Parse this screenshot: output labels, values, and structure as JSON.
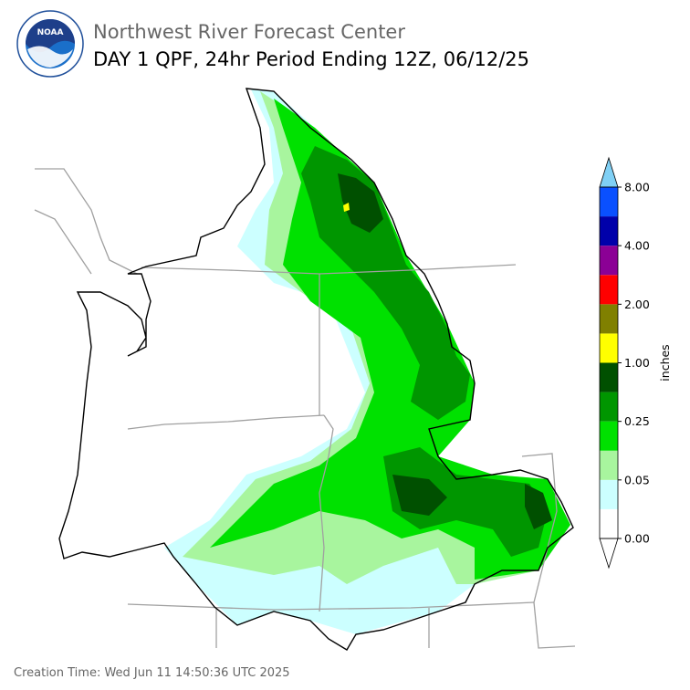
{
  "header": {
    "title": "Northwest River Forecast Center",
    "subtitle": "DAY 1 QPF, 24hr Period Ending 12Z, 06/12/25",
    "logo_text": "NOAA"
  },
  "colorbar": {
    "label": "inches",
    "colors": [
      "#ffffff",
      "#ccffff",
      "#a8f59e",
      "#00e100",
      "#009600",
      "#005000",
      "#ffff00",
      "#808000",
      "#ff0000",
      "#8b0095",
      "#0000aa",
      "#0a50ff"
    ],
    "over_color": "#80d0f5",
    "ticks": [
      {
        "value": 0,
        "label": "0.00"
      },
      {
        "value": 0.05,
        "label": "0.05"
      },
      {
        "value": 0.25,
        "label": "0.25"
      },
      {
        "value": 1,
        "label": "1.00"
      },
      {
        "value": 2,
        "label": "2.00"
      },
      {
        "value": 4,
        "label": "4.00"
      },
      {
        "value": 8,
        "label": "8.00"
      }
    ]
  },
  "footer": {
    "creation_time": "Creation Time: Wed Jun 11 14:50:36 UTC 2025"
  }
}
